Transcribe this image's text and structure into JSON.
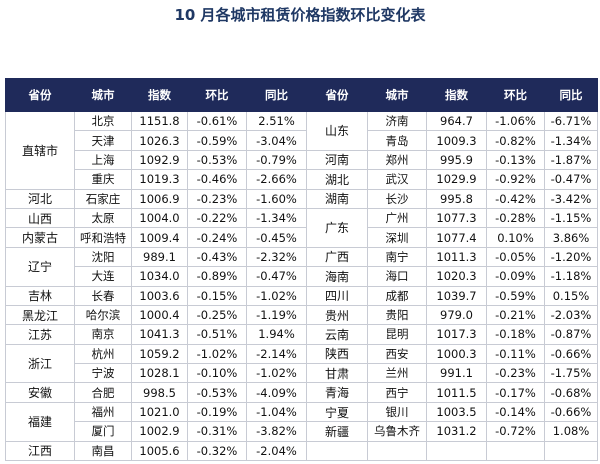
{
  "title": "10 月各城市租赁价格指数环比变化表",
  "header": [
    "省份",
    "城市",
    "指数",
    "环比",
    "同比",
    "省份",
    "城市",
    "指数",
    "环比",
    "同比"
  ],
  "left": [
    {
      "province": "直辖市",
      "rows": [
        [
          "北京",
          "1151.8",
          "-0.61%",
          "2.51%"
        ],
        [
          "天津",
          "1026.3",
          "-0.59%",
          "-3.04%"
        ],
        [
          "上海",
          "1092.9",
          "-0.53%",
          "-0.79%"
        ],
        [
          "重庆",
          "1019.3",
          "-0.46%",
          "-2.66%"
        ]
      ]
    },
    {
      "province": "河北",
      "rows": [
        [
          "石家庄",
          "1006.9",
          "-0.23%",
          "-1.60%"
        ]
      ]
    },
    {
      "province": "山西",
      "rows": [
        [
          "太原",
          "1004.0",
          "-0.22%",
          "-1.34%"
        ]
      ]
    },
    {
      "province": "内蒙古",
      "rows": [
        [
          "呼和浩特",
          "1009.4",
          "-0.24%",
          "-0.45%"
        ]
      ]
    },
    {
      "province": "辽宁",
      "rows": [
        [
          "沈阳",
          "989.1",
          "-0.43%",
          "-2.32%"
        ],
        [
          "大连",
          "1034.0",
          "-0.89%",
          "-0.47%"
        ]
      ]
    },
    {
      "province": "吉林",
      "rows": [
        [
          "长春",
          "1003.6",
          "-0.15%",
          "-1.02%"
        ]
      ]
    },
    {
      "province": "黑龙江",
      "rows": [
        [
          "哈尔滨",
          "1000.4",
          "-0.25%",
          "-1.19%"
        ]
      ]
    },
    {
      "province": "江苏",
      "rows": [
        [
          "南京",
          "1041.3",
          "-0.51%",
          "1.94%"
        ]
      ]
    },
    {
      "province": "浙江",
      "rows": [
        [
          "杭州",
          "1059.2",
          "-1.02%",
          "-2.14%"
        ],
        [
          "宁波",
          "1028.1",
          "-0.10%",
          "-1.02%"
        ]
      ]
    },
    {
      "province": "安徽",
      "rows": [
        [
          "合肥",
          "998.5",
          "-0.53%",
          "-4.09%"
        ]
      ]
    },
    {
      "province": "福建",
      "rows": [
        [
          "福州",
          "1021.0",
          "-0.19%",
          "-1.04%"
        ],
        [
          "厦门",
          "1002.9",
          "-0.31%",
          "-3.82%"
        ]
      ]
    },
    {
      "province": "江西",
      "rows": [
        [
          "南昌",
          "1005.6",
          "-0.32%",
          "-2.04%"
        ]
      ]
    }
  ],
  "right": [
    {
      "province": "山东",
      "rows": [
        [
          "济南",
          "964.7",
          "-1.06%",
          "-6.71%"
        ],
        [
          "青岛",
          "1009.3",
          "-0.82%",
          "-1.34%"
        ]
      ]
    },
    {
      "province": "河南",
      "rows": [
        [
          "郑州",
          "995.9",
          "-0.13%",
          "-1.87%"
        ]
      ]
    },
    {
      "province": "湖北",
      "rows": [
        [
          "武汉",
          "1029.9",
          "-0.92%",
          "-0.47%"
        ]
      ]
    },
    {
      "province": "湖南",
      "rows": [
        [
          "长沙",
          "995.8",
          "-0.42%",
          "-3.42%"
        ]
      ]
    },
    {
      "province": "广东",
      "rows": [
        [
          "广州",
          "1077.3",
          "-0.28%",
          "-1.15%"
        ],
        [
          "深圳",
          "1077.4",
          "0.10%",
          "3.86%"
        ]
      ]
    },
    {
      "province": "广西",
      "rows": [
        [
          "南宁",
          "1011.3",
          "-0.05%",
          "-1.20%"
        ]
      ]
    },
    {
      "province": "海南",
      "rows": [
        [
          "海口",
          "1020.3",
          "-0.09%",
          "-1.18%"
        ]
      ]
    },
    {
      "province": "四川",
      "rows": [
        [
          "成都",
          "1039.7",
          "-0.59%",
          "0.15%"
        ]
      ]
    },
    {
      "province": "贵州",
      "rows": [
        [
          "贵阳",
          "979.0",
          "-0.21%",
          "-2.03%"
        ]
      ]
    },
    {
      "province": "云南",
      "rows": [
        [
          "昆明",
          "1017.3",
          "-0.18%",
          "-0.87%"
        ]
      ]
    },
    {
      "province": "陕西",
      "rows": [
        [
          "西安",
          "1000.3",
          "-0.11%",
          "-0.66%"
        ]
      ]
    },
    {
      "province": "甘肃",
      "rows": [
        [
          "兰州",
          "991.1",
          "-0.23%",
          "-1.75%"
        ]
      ]
    },
    {
      "province": "青海",
      "rows": [
        [
          "西宁",
          "1011.5",
          "-0.17%",
          "-0.68%"
        ]
      ]
    },
    {
      "province": "宁夏",
      "rows": [
        [
          "银川",
          "1003.5",
          "-0.14%",
          "-0.66%"
        ]
      ]
    },
    {
      "province": "新疆",
      "rows": [
        [
          "乌鲁木齐",
          "1031.2",
          "-0.72%",
          "1.08%"
        ]
      ]
    }
  ]
}
